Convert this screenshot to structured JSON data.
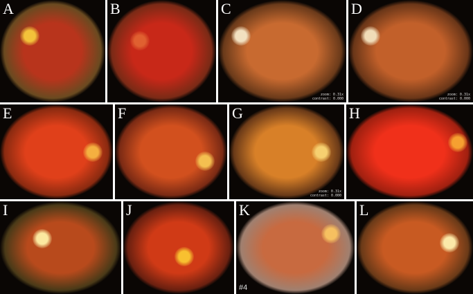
{
  "panels": [
    {
      "label": "A",
      "base": "#b8341c",
      "edge": "#6a4a20",
      "disc": "#f3c23a"
    },
    {
      "label": "B",
      "base": "#c82818",
      "edge": "#7a2a16",
      "disc": "#e06030"
    },
    {
      "label": "C",
      "base": "#c86a30",
      "edge": "#6a3a1a",
      "disc": "#f2e0c0",
      "zoom": "zoom: 0.31x",
      "contrast": "contrast: 0.000"
    },
    {
      "label": "D",
      "base": "#c2602a",
      "edge": "#6a3618",
      "disc": "#f0dcb8",
      "zoom": "zoom: 0.31x",
      "contrast": "contrast: 0.000"
    },
    {
      "label": "E",
      "base": "#e0401a",
      "edge": "#8a2a10",
      "disc": "#f4b040"
    },
    {
      "label": "F",
      "base": "#d2501e",
      "edge": "#7a2a14",
      "disc": "#f4c050"
    },
    {
      "label": "G",
      "base": "#d88028",
      "edge": "#6a3a18",
      "disc": "#f6d070",
      "zoom": "zoom: 0.31x",
      "contrast": "contrast: 0.000"
    },
    {
      "label": "H",
      "base": "#f0301a",
      "edge": "#a02010",
      "disc": "#f6a030"
    },
    {
      "label": "I",
      "base": "#b84a1c",
      "edge": "#4a3a18",
      "disc": "#fbe8a0"
    },
    {
      "label": "J",
      "base": "#d03a16",
      "edge": "#6a2010",
      "disc": "#f8c030"
    },
    {
      "label": "K",
      "base": "#c86a40",
      "edge": "#a08070",
      "disc": "#f6c060",
      "number": "#4"
    },
    {
      "label": "L",
      "base": "#c85a22",
      "edge": "#6a3a18",
      "disc": "#fbe8a8"
    }
  ]
}
